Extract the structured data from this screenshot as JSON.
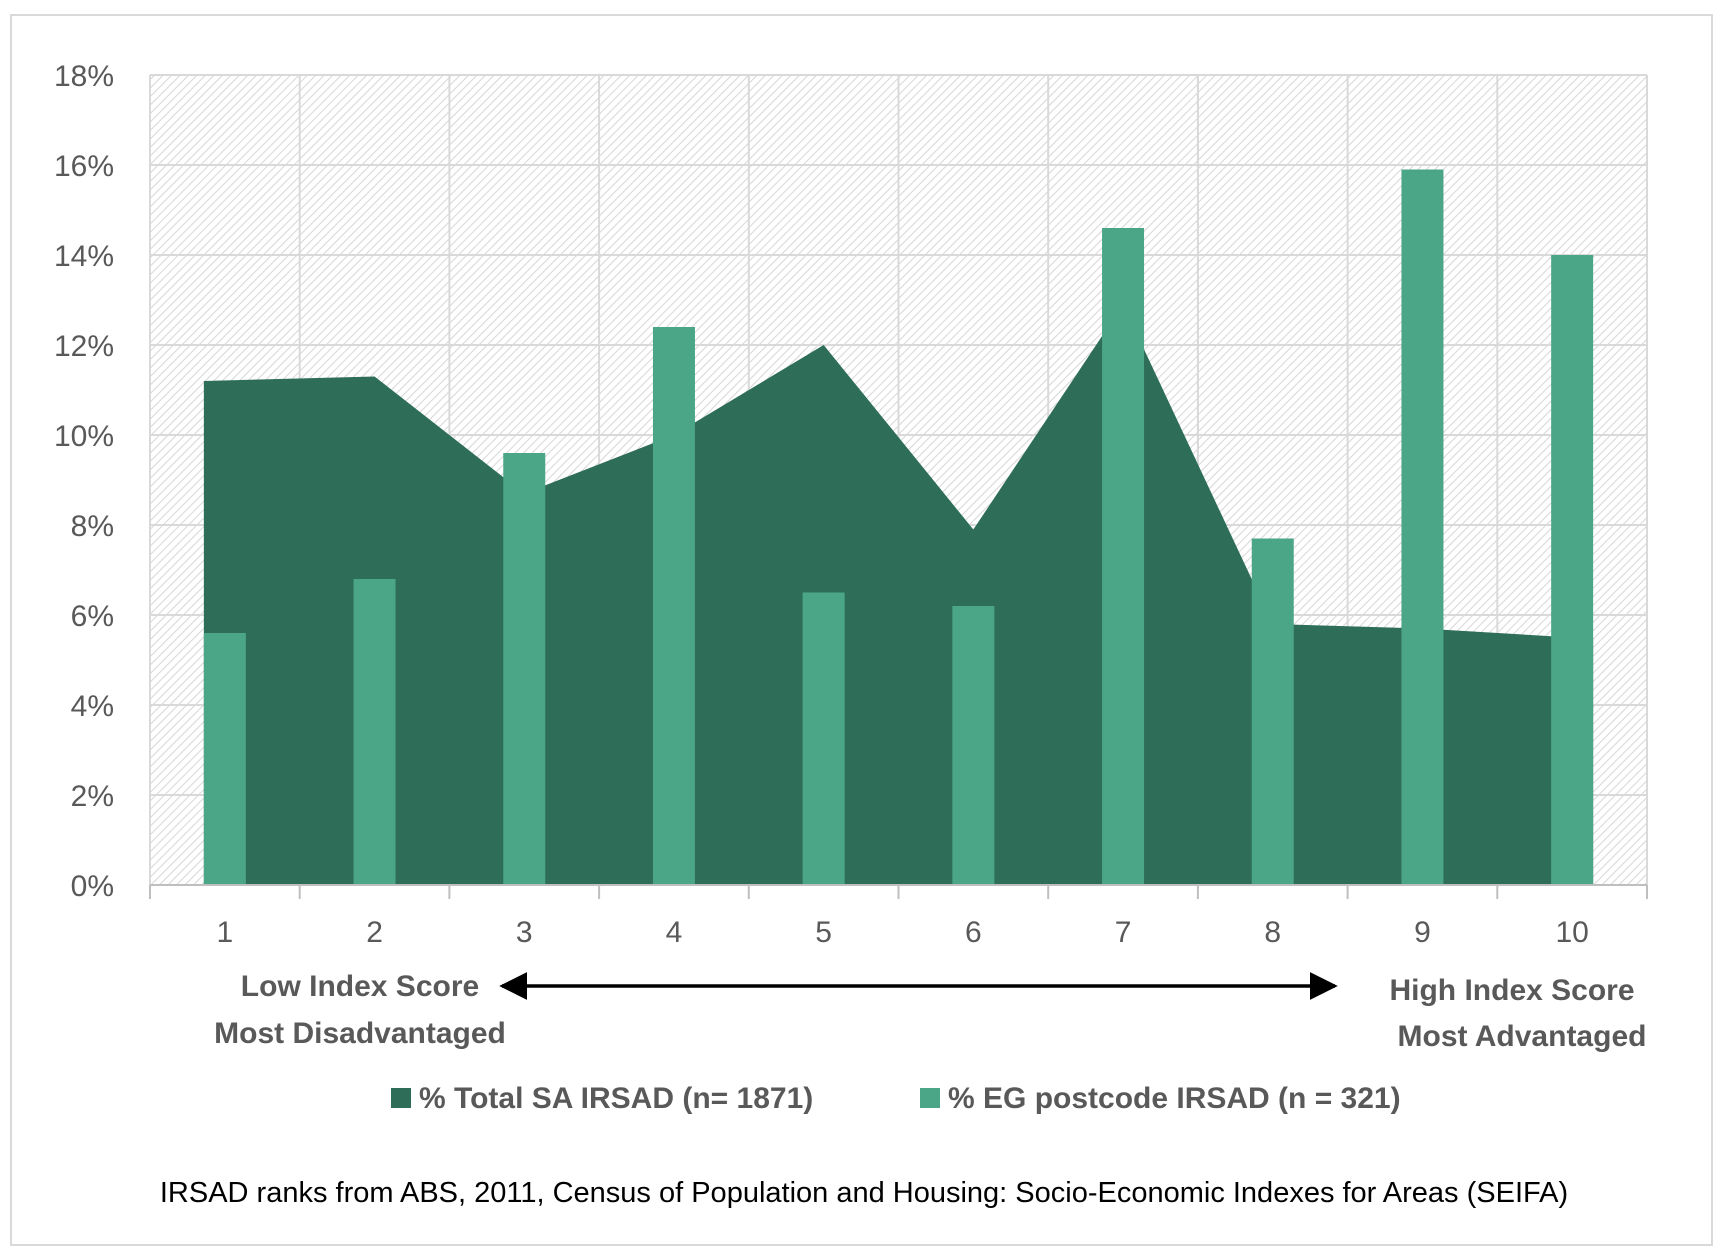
{
  "chart_data": {
    "type": "bar",
    "categories": [
      "1",
      "2",
      "3",
      "4",
      "5",
      "6",
      "7",
      "8",
      "9",
      "10"
    ],
    "series": [
      {
        "name": "% Total SA IRSAD (n= 1871)",
        "render": "area",
        "color": "#2e6e59",
        "values": [
          11.2,
          11.3,
          8.7,
          10.0,
          12.0,
          7.9,
          12.9,
          5.8,
          5.7,
          5.5
        ]
      },
      {
        "name": "% EG postcode IRSAD (n = 321)",
        "render": "bar",
        "color": "#4aa686",
        "values": [
          5.6,
          6.8,
          9.6,
          12.4,
          6.5,
          6.2,
          14.6,
          7.7,
          15.9,
          14.0
        ]
      }
    ],
    "ylim": [
      0,
      18
    ],
    "yticks": [
      "0%",
      "2%",
      "4%",
      "6%",
      "8%",
      "10%",
      "12%",
      "14%",
      "16%",
      "18%"
    ],
    "ytick_values": [
      0,
      2,
      4,
      6,
      8,
      10,
      12,
      14,
      16,
      18
    ],
    "grid": true,
    "legend_position": "bottom",
    "annotations": {
      "low_line1": "Low Index Score",
      "low_line2": "Most Disadvantaged",
      "high_line1": "High Index Score",
      "high_line2": "Most Advantaged"
    },
    "source_note": "IRSAD ranks from ABS, 2011, Census of Population and Housing: Socio-Economic Indexes for Areas (SEIFA)"
  }
}
